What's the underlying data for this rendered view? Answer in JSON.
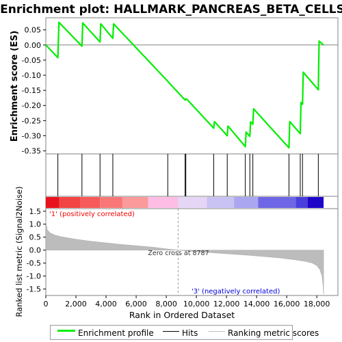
{
  "chart_data": {
    "title": "Enrichment plot: HALLMARK_PANCREAS_BETA_CELLS",
    "type": "line",
    "x_axis": {
      "label": "Rank in Ordered Dataset",
      "range": [
        0,
        19400
      ],
      "ticks": [
        0,
        2000,
        4000,
        6000,
        8000,
        10000,
        12000,
        14000,
        16000,
        18000
      ],
      "tick_labels": [
        "0",
        "2,000",
        "4,000",
        "6,000",
        "8,000",
        "10,000",
        "12,000",
        "14,000",
        "16,000",
        "18,000"
      ]
    },
    "es_panel": {
      "ylabel": "Enrichment score (ES)",
      "ylim": [
        -0.36,
        0.09
      ],
      "ticks": [
        0.05,
        0.0,
        -0.05,
        -0.1,
        -0.15,
        -0.2,
        -0.25,
        -0.3,
        -0.35
      ],
      "tick_labels": [
        "0.05",
        "0.00",
        "-0.05",
        "-0.10",
        "-0.15",
        "-0.20",
        "-0.25",
        "-0.30",
        "-0.35"
      ],
      "series": [
        {
          "name": "Enrichment profile",
          "color": "#00ee00",
          "points": [
            [
              0,
              0.0
            ],
            [
              800,
              -0.042
            ],
            [
              870,
              0.075
            ],
            [
              2400,
              -0.004
            ],
            [
              2450,
              0.073
            ],
            [
              3600,
              0.01
            ],
            [
              3650,
              0.07
            ],
            [
              4450,
              0.022
            ],
            [
              4500,
              0.07
            ],
            [
              8100,
              -0.12
            ],
            [
              8150,
              -0.123
            ],
            [
              9250,
              -0.182
            ],
            [
              9300,
              -0.178
            ],
            [
              9380,
              -0.18
            ],
            [
              11150,
              -0.275
            ],
            [
              11200,
              -0.253
            ],
            [
              12050,
              -0.3
            ],
            [
              12100,
              -0.268
            ],
            [
              13250,
              -0.336
            ],
            [
              13300,
              -0.288
            ],
            [
              13550,
              -0.302
            ],
            [
              13600,
              -0.254
            ],
            [
              13750,
              -0.262
            ],
            [
              13800,
              -0.211
            ],
            [
              16150,
              -0.34
            ],
            [
              16200,
              -0.253
            ],
            [
              16900,
              -0.293
            ],
            [
              16950,
              -0.19
            ],
            [
              17050,
              -0.196
            ],
            [
              17100,
              -0.09
            ],
            [
              18100,
              -0.148
            ],
            [
              18150,
              0.013
            ],
            [
              18450,
              0.0
            ]
          ]
        }
      ]
    },
    "hits": [
      800,
      2400,
      3600,
      4450,
      8100,
      9250,
      9300,
      11150,
      12050,
      13250,
      13550,
      13750,
      16150,
      16900,
      17050,
      18100
    ],
    "metric_panel": {
      "ylabel": "Ranked list metric (Signal2Noise)",
      "ylim": [
        -1.75,
        1.6
      ],
      "ticks": [
        1.5,
        1.0,
        0.5,
        0.0,
        -0.5,
        -1.0,
        -1.5
      ],
      "tick_labels": [
        "1.5",
        "1.0",
        "0.5",
        "0.0",
        "-0.5",
        "-1.0",
        "-1.5"
      ],
      "metric_curve": [
        [
          0,
          1.12
        ],
        [
          100,
          0.78
        ],
        [
          300,
          0.66
        ],
        [
          600,
          0.58
        ],
        [
          1000,
          0.52
        ],
        [
          2000,
          0.42
        ],
        [
          3000,
          0.34
        ],
        [
          4000,
          0.28
        ],
        [
          5000,
          0.22
        ],
        [
          6000,
          0.17
        ],
        [
          7000,
          0.12
        ],
        [
          8000,
          0.05
        ],
        [
          8787,
          0.0
        ],
        [
          9500,
          -0.04
        ],
        [
          10500,
          -0.08
        ],
        [
          11500,
          -0.12
        ],
        [
          12500,
          -0.16
        ],
        [
          13500,
          -0.2
        ],
        [
          14500,
          -0.25
        ],
        [
          15500,
          -0.3
        ],
        [
          16500,
          -0.37
        ],
        [
          17200,
          -0.43
        ],
        [
          17700,
          -0.5
        ],
        [
          18000,
          -0.6
        ],
        [
          18200,
          -0.75
        ],
        [
          18350,
          -1.0
        ],
        [
          18420,
          -1.4
        ],
        [
          18450,
          -1.7
        ]
      ],
      "annotations": {
        "zero_cross": "Zero cross at 8787",
        "positive": "'1' (positively correlated)",
        "negative": "'3' (negatively correlated)"
      },
      "zero_cross_rank": 8787
    },
    "heat_bar": {
      "segments": [
        {
          "end": 900,
          "color": "#e8121e"
        },
        {
          "end": 2300,
          "color": "#f34444"
        },
        {
          "end": 3600,
          "color": "#f75a5a"
        },
        {
          "end": 5100,
          "color": "#f97777"
        },
        {
          "end": 6800,
          "color": "#fb9a9a"
        },
        {
          "end": 8800,
          "color": "#fdbde5"
        },
        {
          "end": 10700,
          "color": "#e6d6f6"
        },
        {
          "end": 12500,
          "color": "#c9c3f4"
        },
        {
          "end": 14100,
          "color": "#aaa6f0"
        },
        {
          "end": 16600,
          "color": "#6f66e6"
        },
        {
          "end": 17400,
          "color": "#4a3fdd"
        },
        {
          "end": 18450,
          "color": "#1f05c8"
        }
      ]
    },
    "legend": [
      {
        "label": "Enrichment profile",
        "color": "#00ee00"
      },
      {
        "label": "Hits",
        "color": "#000000"
      },
      {
        "label": "Ranking metric scores",
        "color": "#c0c0c0"
      }
    ]
  }
}
